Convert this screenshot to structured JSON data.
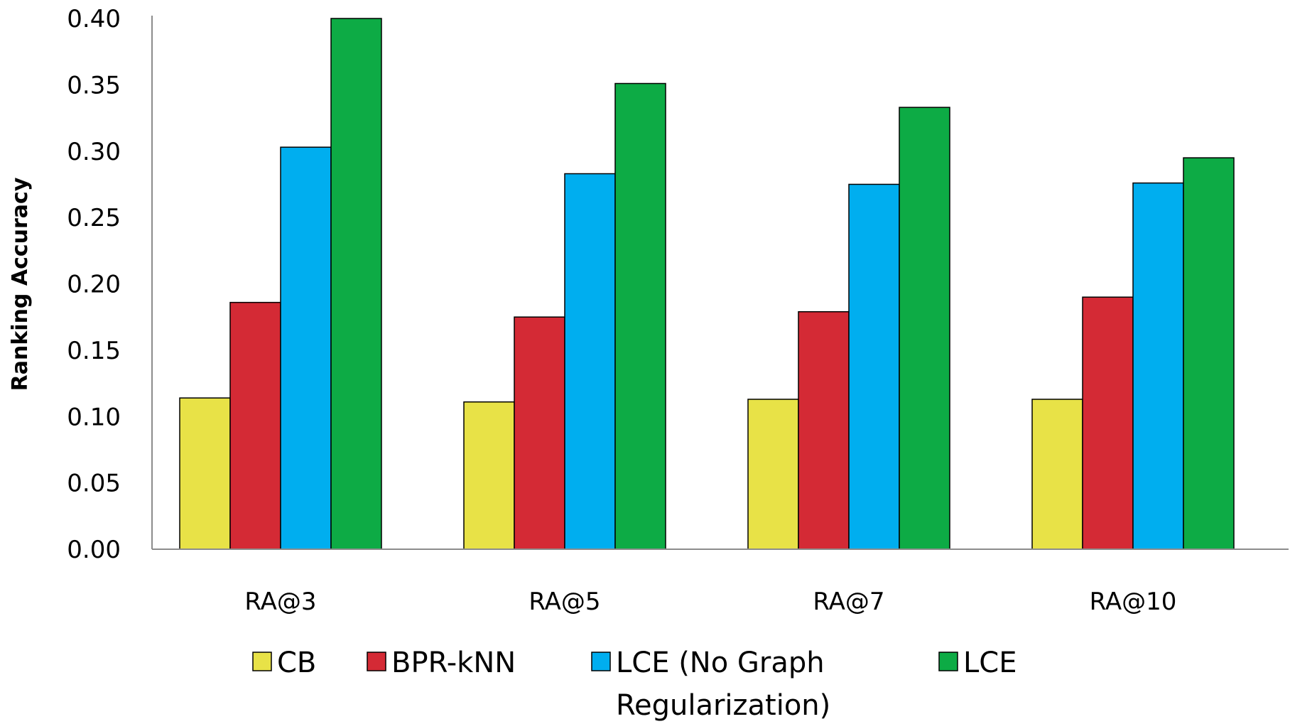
{
  "chart_data": {
    "type": "bar",
    "ylabel": "Ranking Accuracy",
    "xlabel": "",
    "ylim": [
      0,
      0.4
    ],
    "yticks": [
      "0.00",
      "0.05",
      "0.10",
      "0.15",
      "0.20",
      "0.25",
      "0.30",
      "0.35",
      "0.40"
    ],
    "categories": [
      "RA@3",
      "RA@5",
      "RA@7",
      "RA@10"
    ],
    "series": [
      {
        "name": "CB",
        "color": "#e8e247",
        "values": [
          0.114,
          0.111,
          0.113,
          0.113
        ]
      },
      {
        "name": "BPR-kNN",
        "color": "#d42a35",
        "values": [
          0.186,
          0.175,
          0.179,
          0.19
        ]
      },
      {
        "name": "LCE (No Graph Regularization)",
        "legend_lines": [
          "LCE (No Graph",
          "Regularization)"
        ],
        "color": "#00aeef",
        "values": [
          0.303,
          0.283,
          0.275,
          0.276
        ]
      },
      {
        "name": "LCE",
        "color": "#0dab45",
        "values": [
          0.4,
          0.351,
          0.333,
          0.295
        ]
      }
    ],
    "legend_position": "bottom",
    "grid": false
  }
}
